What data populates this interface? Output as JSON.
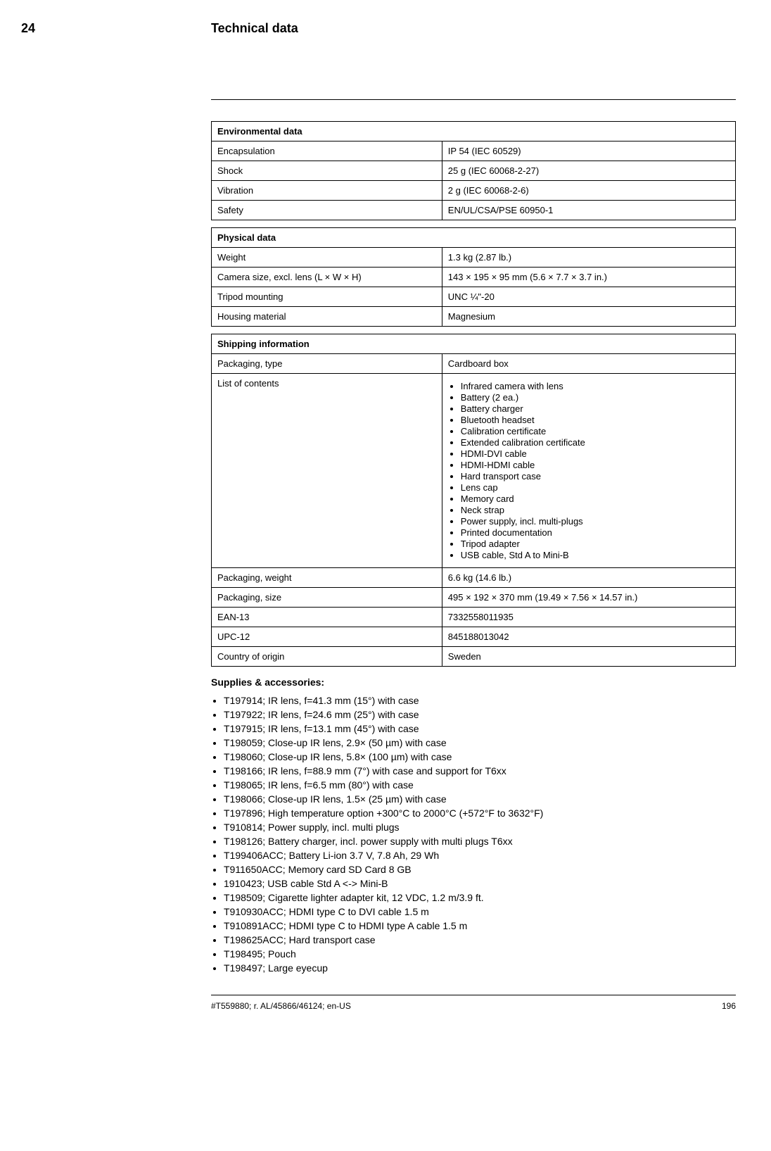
{
  "header": {
    "chapter_number": "24",
    "title": "Technical data"
  },
  "tables": {
    "environmental": {
      "heading": "Environmental data",
      "rows": [
        {
          "label": "Encapsulation",
          "value": "IP 54 (IEC 60529)"
        },
        {
          "label": "Shock",
          "value": "25 g (IEC 60068-2-27)"
        },
        {
          "label": "Vibration",
          "value": "2 g (IEC 60068-2-6)"
        },
        {
          "label": "Safety",
          "value": "EN/UL/CSA/PSE 60950-1"
        }
      ]
    },
    "physical": {
      "heading": "Physical data",
      "rows": [
        {
          "label": "Weight",
          "value": "1.3 kg (2.87 lb.)"
        },
        {
          "label": "Camera size, excl. lens (L × W × H)",
          "value": "143 × 195 × 95 mm (5.6 × 7.7 × 3.7 in.)"
        },
        {
          "label": "Tripod mounting",
          "value": "UNC ¼\"-20"
        },
        {
          "label": "Housing material",
          "value": "Magnesium"
        }
      ]
    },
    "shipping": {
      "heading": "Shipping information",
      "packaging_type": {
        "label": "Packaging, type",
        "value": "Cardboard box"
      },
      "list_of_contents_label": "List of contents",
      "list_of_contents": [
        "Infrared camera with lens",
        "Battery (2 ea.)",
        "Battery charger",
        "Bluetooth headset",
        "Calibration certificate",
        "Extended calibration certificate",
        "HDMI-DVI cable",
        "HDMI-HDMI cable",
        "Hard transport case",
        "Lens cap",
        "Memory card",
        "Neck strap",
        "Power supply, incl. multi-plugs",
        "Printed documentation",
        "Tripod adapter",
        "USB cable, Std A to Mini-B"
      ],
      "tail_rows": [
        {
          "label": "Packaging, weight",
          "value": "6.6 kg (14.6 lb.)"
        },
        {
          "label": "Packaging, size",
          "value": "495 × 192 × 370 mm (19.49 × 7.56 × 14.57 in.)"
        },
        {
          "label": "EAN-13",
          "value": "7332558011935"
        },
        {
          "label": "UPC-12",
          "value": "845188013042"
        },
        {
          "label": "Country of origin",
          "value": "Sweden"
        }
      ]
    }
  },
  "supplies": {
    "heading": "Supplies & accessories:",
    "items": [
      "T197914; IR lens, f=41.3 mm (15°) with case",
      "T197922; IR lens, f=24.6 mm (25°) with case",
      "T197915; IR lens, f=13.1 mm (45°) with case",
      "T198059; Close-up IR lens, 2.9× (50 µm) with case",
      "T198060; Close-up IR lens, 5.8× (100 µm) with case",
      "T198166; IR lens, f=88.9 mm (7°) with case and support for T6xx",
      "T198065; IR lens, f=6.5 mm (80°) with case",
      "T198066; Close-up IR lens, 1.5× (25 µm) with case",
      "T197896; High temperature option +300°C to 2000°C (+572°F to 3632°F)",
      "T910814; Power supply, incl. multi plugs",
      "T198126; Battery charger, incl. power supply with multi plugs T6xx",
      "T199406ACC; Battery Li-ion 3.7 V, 7.8 Ah, 29 Wh",
      "T911650ACC; Memory card SD Card 8 GB",
      "1910423; USB cable Std A <-> Mini-B",
      "T198509; Cigarette lighter adapter kit, 12 VDC, 1.2 m/3.9 ft.",
      "T910930ACC; HDMI type C to DVI cable 1.5 m",
      "T910891ACC; HDMI type C to HDMI type A cable 1.5 m",
      "T198625ACC; Hard transport case",
      "T198495; Pouch",
      "T198497; Large eyecup"
    ]
  },
  "footer": {
    "doc_ref": "#T559880; r. AL/45866/46124; en-US",
    "page_number": "196"
  }
}
